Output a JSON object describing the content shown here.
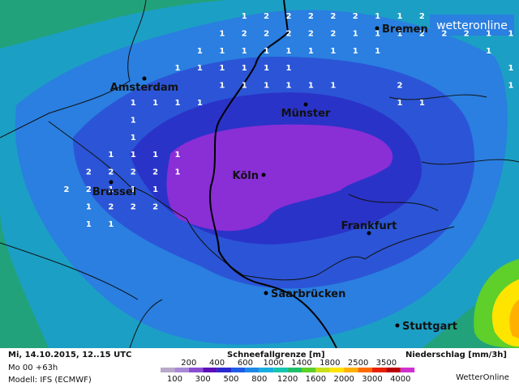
{
  "logo": "wetteronline",
  "precip_grid": [
    [
      null,
      null,
      null,
      null,
      null,
      null,
      null,
      null,
      1,
      2,
      2,
      2,
      2,
      2,
      1,
      1,
      2,
      null,
      null,
      null,
      null
    ],
    [
      null,
      null,
      null,
      null,
      null,
      null,
      null,
      1,
      2,
      2,
      2,
      2,
      2,
      1,
      1,
      1,
      2,
      2,
      2,
      1,
      1
    ],
    [
      null,
      null,
      null,
      null,
      null,
      null,
      1,
      1,
      1,
      1,
      1,
      1,
      1,
      1,
      1,
      null,
      null,
      null,
      null,
      1,
      null
    ],
    [
      null,
      null,
      null,
      null,
      null,
      1,
      1,
      1,
      1,
      1,
      1,
      null,
      null,
      null,
      null,
      null,
      null,
      null,
      null,
      null,
      1
    ],
    [
      null,
      null,
      null,
      null,
      null,
      null,
      null,
      1,
      1,
      1,
      1,
      1,
      1,
      null,
      null,
      2,
      null,
      null,
      null,
      null,
      1
    ],
    [
      null,
      null,
      null,
      1,
      1,
      1,
      1,
      null,
      null,
      null,
      null,
      null,
      null,
      null,
      null,
      1,
      1,
      null,
      null,
      null,
      null
    ],
    [
      null,
      null,
      null,
      1,
      null,
      null,
      null,
      null,
      null,
      null,
      null,
      null,
      null,
      null,
      null,
      null,
      null,
      null,
      null,
      null,
      null
    ],
    [
      null,
      null,
      null,
      1,
      null,
      null,
      null,
      null,
      null,
      null,
      null,
      null,
      null,
      null,
      null,
      null,
      null,
      null,
      null,
      null,
      null
    ],
    [
      null,
      null,
      1,
      1,
      1,
      1,
      null,
      null,
      null,
      null,
      null,
      null,
      null,
      null,
      null,
      null,
      null,
      null,
      null,
      null,
      null
    ],
    [
      null,
      2,
      2,
      2,
      2,
      1,
      null,
      null,
      null,
      null,
      null,
      null,
      null,
      null,
      null,
      null,
      null,
      null,
      null,
      null,
      null
    ],
    [
      2,
      2,
      1,
      1,
      1,
      null,
      null,
      null,
      null,
      null,
      null,
      null,
      null,
      null,
      null,
      null,
      null,
      null,
      null,
      null,
      null
    ],
    [
      null,
      1,
      2,
      2,
      2,
      null,
      null,
      null,
      null,
      null,
      null,
      null,
      null,
      null,
      null,
      null,
      null,
      null,
      null,
      null,
      null
    ],
    [
      null,
      1,
      1,
      null,
      null,
      null,
      null,
      null,
      null,
      null,
      null,
      null,
      null,
      null,
      null,
      null,
      null,
      null,
      null,
      null,
      null
    ]
  ],
  "cities": [
    "Bremen",
    "Amsterdam",
    "Münster",
    "Köln",
    "Brussel",
    "Frankfurt",
    "Saarbrücken",
    "Stuttgart"
  ],
  "footer": {
    "date": "Mi, 14.10.2015, 12..15 UTC",
    "run": "Mo 00 +63h",
    "model": "Modell: IFS (ECMWF)",
    "snow_title": "Schneefallgrenze [m]",
    "precip_title": "Niederschlag [mm/3h]",
    "brand": "WetterOnline",
    "scale": [
      100,
      200,
      300,
      400,
      500,
      600,
      800,
      1000,
      1200,
      1400,
      1600,
      1800,
      2000,
      2500,
      3000,
      3500,
      4000
    ],
    "colors": [
      "#b9a9c9",
      "#a889d6",
      "#8a4ed0",
      "#5b10b8",
      "#2b2ad0",
      "#1f5ce6",
      "#1e88e6",
      "#19aee0",
      "#17c4b0",
      "#1fbf6a",
      "#5fcf2a",
      "#c8e01a",
      "#ffe400",
      "#ffb000",
      "#ff6a00",
      "#e82000",
      "#b80000",
      "#d030d0"
    ]
  }
}
